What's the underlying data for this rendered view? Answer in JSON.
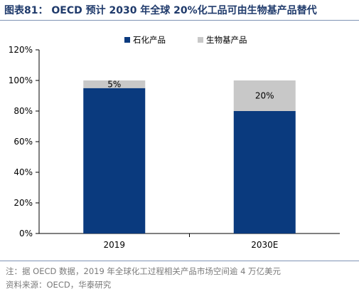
{
  "figure": {
    "title": "图表81：  OECD 预计 2030 年全球 20%化工品可由生物基产品替代"
  },
  "notes": {
    "note": "注：据 OECD 数据，2019 年全球化工过程相关产品市场空间逾 4 万亿美元",
    "source": "资料来源：OECD，华泰研究"
  },
  "chart_data": {
    "type": "bar",
    "stacked": true,
    "categories": [
      "2019",
      "2030E"
    ],
    "series": [
      {
        "name": "石化产品",
        "values": [
          95,
          80
        ],
        "color": "#0a3a7e",
        "labels": [
          "",
          ""
        ]
      },
      {
        "name": "生物基产品",
        "values": [
          5,
          20
        ],
        "color": "#c8c8c8",
        "labels": [
          "5%",
          "20%"
        ]
      }
    ],
    "ylim": [
      0,
      120
    ],
    "yticks": [
      "0%",
      "20%",
      "40%",
      "60%",
      "80%",
      "100%",
      "120%"
    ],
    "legend_position": "top-center",
    "grid": false
  }
}
